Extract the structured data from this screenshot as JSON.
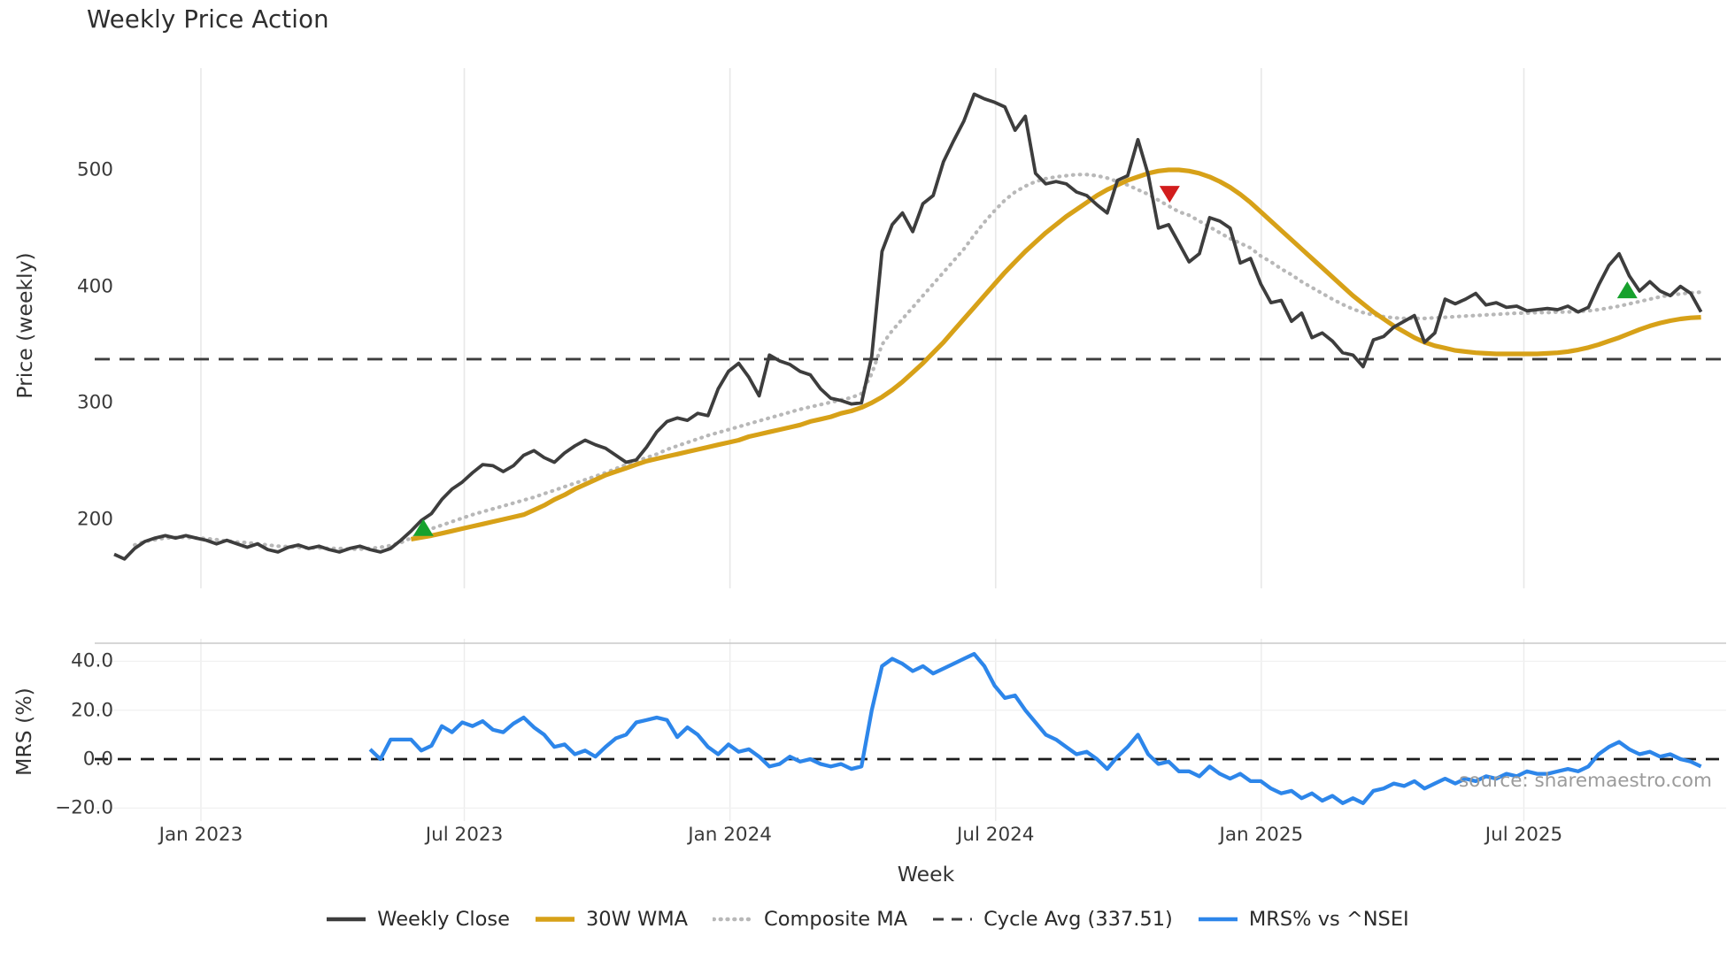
{
  "title": "Weekly Price Action",
  "source_note": "source: sharemaestro.com",
  "axes": {
    "price_label": "Price (weekly)",
    "mrs_label": "MRS (%)",
    "week_label": "Week",
    "price_ticks": [
      {
        "v": 500,
        "label": "500"
      },
      {
        "v": 400,
        "label": "400"
      },
      {
        "v": 300,
        "label": "300"
      },
      {
        "v": 200,
        "label": "200"
      }
    ],
    "mrs_ticks": [
      {
        "v": 40,
        "label": "40.0"
      },
      {
        "v": 20,
        "label": "20.0"
      },
      {
        "v": 0,
        "label": "0.0"
      },
      {
        "v": -20,
        "label": "−20.0"
      }
    ],
    "x_ticks": [
      {
        "week": 8.47,
        "label": "Jan 2023"
      },
      {
        "week": 34.2,
        "label": "Jul 2023"
      },
      {
        "week": 60.15,
        "label": "Jan 2024"
      },
      {
        "week": 86.1,
        "label": "Jul 2024"
      },
      {
        "week": 112.05,
        "label": "Jan 2025"
      },
      {
        "week": 137.7,
        "label": "Jul 2025"
      }
    ]
  },
  "legend": [
    {
      "label": "Weekly Close",
      "color": "#3d3d3d",
      "style": "solid",
      "dash": "",
      "swatch_width": 4.5
    },
    {
      "label": "30W WMA",
      "color": "#d7a118",
      "style": "solid",
      "dash": "",
      "swatch_width": 5.5
    },
    {
      "label": "Composite MA",
      "color": "#b8b8b8",
      "style": "dotted",
      "dash": "0.8 7",
      "swatch_width": 4.5
    },
    {
      "label": "Cycle Avg (337.51)",
      "color": "#3d3d3d",
      "style": "dashed",
      "dash": "12 9",
      "swatch_width": 3
    },
    {
      "label": "MRS% vs ^NSEI",
      "color": "#2d86ea",
      "style": "solid",
      "dash": "",
      "swatch_width": 4.5
    }
  ],
  "chart_data": [
    {
      "type": "line",
      "panel": "price",
      "title": "Weekly Price Action",
      "ylabel": "Price (weekly)",
      "xlabel": "Week",
      "x_unit": "week_index_from_2022-11",
      "xlim": [
        0,
        155
      ],
      "ylim": [
        140,
        590
      ],
      "grid": "vertical-only",
      "cycle_avg": 337.51,
      "series": [
        {
          "name": "Weekly Close",
          "color": "#3d3d3d",
          "width": 3.8,
          "dash": "",
          "start_week": 0,
          "values": [
            170,
            166,
            175,
            181,
            184,
            186,
            184,
            186,
            184,
            182,
            179,
            182,
            179,
            176,
            179,
            174,
            172,
            176,
            178,
            175,
            177,
            174,
            172,
            175,
            177,
            174,
            172,
            175,
            182,
            190,
            199,
            205,
            217,
            226,
            232,
            240,
            247,
            246,
            241,
            246,
            255,
            259,
            253,
            249,
            257,
            263,
            268,
            264,
            261,
            255,
            249,
            251,
            262,
            275,
            284,
            287,
            285,
            291,
            289,
            312,
            327,
            334,
            322,
            306,
            341,
            336,
            333,
            327,
            324,
            312,
            304,
            302,
            299,
            300,
            340,
            430,
            453,
            463,
            447,
            471,
            478,
            507,
            525,
            542,
            565,
            561,
            558,
            554,
            534,
            546,
            497,
            488,
            490,
            488,
            481,
            478,
            470,
            463,
            491,
            495,
            526,
            496,
            450,
            453,
            437,
            421,
            428,
            459,
            456,
            450,
            420,
            424,
            402,
            386,
            388,
            370,
            377,
            356,
            360,
            353,
            343,
            341,
            331,
            354,
            357,
            365,
            370,
            375,
            352,
            360,
            389,
            385,
            389,
            394,
            384,
            386,
            382,
            383,
            379,
            380,
            381,
            380,
            383,
            378,
            382,
            401,
            418,
            428,
            409,
            396,
            404,
            396,
            392,
            400,
            394,
            378
          ]
        },
        {
          "name": "30W WMA",
          "color": "#d7a118",
          "width": 5.2,
          "dash": "",
          "start_week": 29,
          "values": [
            183,
            184.5,
            186,
            188,
            190,
            192,
            194,
            196,
            198,
            200,
            202,
            204,
            208,
            212,
            217,
            221,
            226,
            230,
            234,
            238,
            241,
            244,
            247,
            250,
            252,
            254,
            256,
            258,
            260,
            262,
            264,
            266,
            268,
            271,
            273,
            275,
            277,
            279,
            281,
            284,
            286,
            288,
            291,
            293,
            296,
            300,
            305,
            311,
            318,
            326,
            334,
            343,
            352,
            362,
            372,
            382,
            392,
            402,
            412,
            421,
            430,
            438,
            446,
            453,
            460,
            466,
            472,
            478,
            483,
            487,
            491,
            494,
            497,
            499,
            500,
            500,
            499,
            497,
            494,
            490,
            485,
            479,
            472,
            464,
            456,
            448,
            440,
            432,
            424,
            416,
            408,
            400,
            392,
            385,
            378,
            372,
            366,
            361,
            356,
            352,
            349,
            347,
            345,
            344,
            343,
            342.5,
            342,
            342,
            342,
            342,
            342,
            342.5,
            343,
            344,
            345.5,
            347.5,
            350,
            353,
            356,
            359.5,
            363,
            366,
            368.5,
            370.5,
            372,
            373,
            373.5
          ]
        },
        {
          "name": "Composite MA",
          "color": "#b8b8b8",
          "width": 4.2,
          "dash": "0.8 7",
          "start_week": 2,
          "values": [
            178,
            181,
            182.5,
            184,
            184.5,
            184.5,
            184,
            183.5,
            182.5,
            181.5,
            180.5,
            180,
            179,
            178,
            177,
            176.5,
            176,
            175.5,
            175.5,
            175,
            175,
            174.5,
            174.5,
            175,
            176,
            177.5,
            180,
            184,
            188,
            192,
            195,
            198,
            201,
            204,
            206.5,
            209,
            211.5,
            214,
            216.5,
            219,
            222,
            225,
            228,
            231,
            234,
            237,
            240,
            243.5,
            247,
            250,
            253,
            256,
            260,
            263,
            266,
            269,
            272,
            274.5,
            277,
            279.5,
            282,
            284.5,
            287,
            289.5,
            292,
            294.5,
            296.5,
            298.5,
            300.5,
            302.5,
            304.5,
            308,
            325,
            350,
            362,
            372,
            382,
            392,
            402,
            412,
            422,
            432,
            444,
            455,
            465,
            474,
            481,
            486,
            490,
            492.5,
            494,
            495,
            496,
            496,
            495,
            493,
            490,
            487,
            483,
            479,
            474,
            469,
            464,
            461,
            456,
            451,
            446,
            441,
            437,
            433,
            426,
            421,
            415,
            410,
            404,
            399,
            394,
            389,
            384.5,
            380.5,
            377.5,
            375.5,
            374,
            373,
            372.5,
            372.5,
            372.5,
            373,
            373.5,
            374,
            374.5,
            375,
            375.5,
            376,
            376.5,
            377,
            377,
            377.5,
            377.5,
            378,
            378,
            378.5,
            379,
            380,
            381.5,
            383,
            385,
            387,
            389,
            391,
            392.5,
            393.5,
            394.5,
            395
          ]
        },
        {
          "name": "Cycle Avg",
          "color": "#3d3d3d",
          "width": 2.8,
          "dash": "17 11",
          "const": 337.51
        }
      ],
      "markers": [
        {
          "week": 30.2,
          "price": 193,
          "type": "buy",
          "color": "#17a12d"
        },
        {
          "week": 103.1,
          "price": 479,
          "type": "sell",
          "color": "#d21d1d"
        },
        {
          "week": 147.8,
          "price": 397,
          "type": "buy",
          "color": "#17a12d"
        }
      ]
    },
    {
      "type": "line",
      "panel": "mrs",
      "ylabel": "MRS (%)",
      "xlim": [
        0,
        155
      ],
      "ylim": [
        -25,
        47
      ],
      "grid": "horizontal-and-vertical",
      "zero_line": 0,
      "series": [
        {
          "name": "MRS% vs ^NSEI",
          "color": "#2d86ea",
          "width": 4.3,
          "dash": "",
          "start_week": 25,
          "values": [
            4,
            0,
            8,
            8,
            8,
            3.5,
            5.5,
            13.5,
            11,
            15,
            13.5,
            15.5,
            12,
            11,
            14.5,
            17,
            13,
            10,
            5,
            6,
            2,
            3.5,
            1,
            5,
            8.5,
            10,
            15,
            16,
            17,
            16,
            9,
            13,
            10,
            5,
            2,
            6,
            3,
            4,
            1,
            -3,
            -2,
            1,
            -1,
            0,
            -2,
            -3,
            -2,
            -4,
            -3,
            20,
            38,
            41,
            39,
            36,
            38,
            35,
            37,
            39,
            41,
            43,
            38,
            30,
            25,
            26,
            20,
            15,
            10,
            8,
            5,
            2,
            3,
            0,
            -4,
            1,
            5,
            10,
            2,
            -2,
            -1,
            -5,
            -5,
            -7,
            -3,
            -6,
            -8,
            -6,
            -9,
            -9,
            -12,
            -14,
            -13,
            -16,
            -14,
            -17,
            -15,
            -18,
            -16,
            -18,
            -13,
            -12,
            -10,
            -11,
            -9,
            -12,
            -10,
            -8,
            -10,
            -8,
            -9,
            -7,
            -8,
            -6,
            -7,
            -5,
            -6,
            -6,
            -5,
            -4,
            -5,
            -3,
            2,
            5,
            7,
            4,
            2,
            3,
            1,
            2,
            0,
            -1,
            -3
          ]
        },
        {
          "name": "Zero line",
          "color": "#1c1c1c",
          "width": 2.8,
          "dash": "15 11",
          "const": 0
        }
      ]
    }
  ]
}
